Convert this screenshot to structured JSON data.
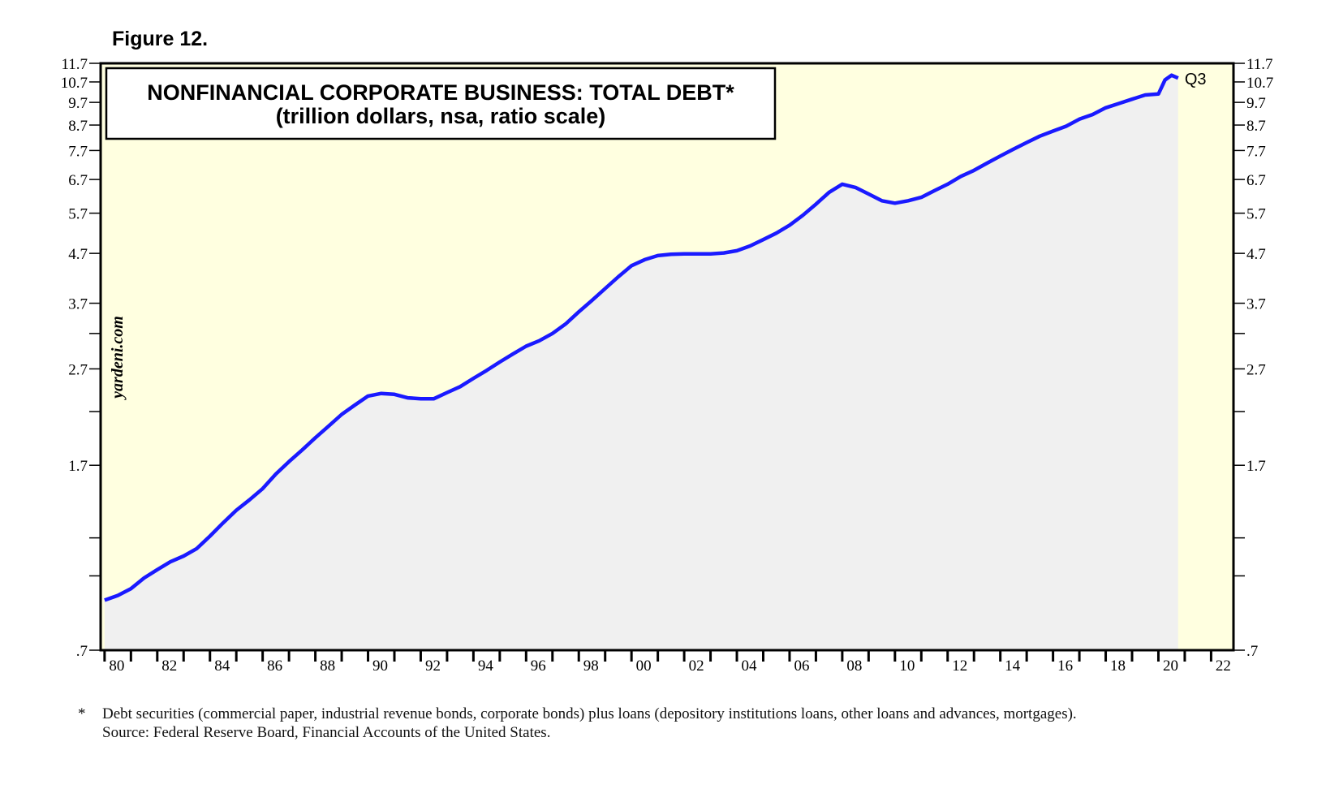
{
  "figure_label": "Figure 12.",
  "chart_data": {
    "type": "area",
    "title": "NONFINANCIAL CORPORATE BUSINESS: TOTAL DEBT*",
    "subtitle": "(trillion dollars, nsa, ratio scale)",
    "watermark": "yardeni.com",
    "y_scale": "log",
    "ylim": [
      0.7,
      11.7
    ],
    "y_tick_labels": [
      ".7",
      "1.7",
      "2.7",
      "3.7",
      "4.7",
      "5.7",
      "6.7",
      "7.7",
      "8.7",
      "9.7",
      "10.7",
      "11.7"
    ],
    "y_tick_values": [
      0.7,
      1.7,
      2.7,
      3.7,
      4.7,
      5.7,
      6.7,
      7.7,
      8.7,
      9.7,
      10.7,
      11.7
    ],
    "y_minor_ticks": [
      1.0,
      1.2,
      2.2,
      3.2
    ],
    "xlim": [
      1979.85,
      2022.85
    ],
    "x_tick_labels": [
      "80",
      "82",
      "84",
      "86",
      "88",
      "90",
      "92",
      "94",
      "96",
      "98",
      "00",
      "02",
      "04",
      "06",
      "08",
      "10",
      "12",
      "14",
      "16",
      "18",
      "20",
      "22"
    ],
    "x_tick_years": [
      1980,
      1982,
      1984,
      1986,
      1988,
      1990,
      1992,
      1994,
      1996,
      1998,
      2000,
      2002,
      2004,
      2006,
      2008,
      2010,
      2012,
      2014,
      2016,
      2018,
      2020,
      2022
    ],
    "last_point_label": "Q3",
    "series": [
      {
        "name": "Nonfinancial corporate business total debt",
        "color": "#1a1aff",
        "x": [
          1980.0,
          1980.5,
          1981.0,
          1981.5,
          1982.0,
          1982.5,
          1983.0,
          1983.5,
          1984.0,
          1984.5,
          1985.0,
          1985.5,
          1986.0,
          1986.5,
          1987.0,
          1987.5,
          1988.0,
          1988.5,
          1989.0,
          1989.5,
          1990.0,
          1990.5,
          1991.0,
          1991.5,
          1992.0,
          1992.5,
          1993.0,
          1993.5,
          1994.0,
          1994.5,
          1995.0,
          1995.5,
          1996.0,
          1996.5,
          1997.0,
          1997.5,
          1998.0,
          1998.5,
          1999.0,
          1999.5,
          2000.0,
          2000.5,
          2001.0,
          2001.5,
          2002.0,
          2002.5,
          2003.0,
          2003.5,
          2004.0,
          2004.5,
          2005.0,
          2005.5,
          2006.0,
          2006.5,
          2007.0,
          2007.5,
          2008.0,
          2008.5,
          2009.0,
          2009.5,
          2010.0,
          2010.5,
          2011.0,
          2011.5,
          2012.0,
          2012.5,
          2013.0,
          2013.5,
          2014.0,
          2014.5,
          2015.0,
          2015.5,
          2016.0,
          2016.5,
          2017.0,
          2017.5,
          2018.0,
          2018.5,
          2019.0,
          2019.5,
          2020.0,
          2020.25,
          2020.5,
          2020.75
        ],
        "values": [
          0.89,
          0.91,
          0.94,
          0.99,
          1.03,
          1.07,
          1.1,
          1.14,
          1.21,
          1.29,
          1.37,
          1.44,
          1.52,
          1.63,
          1.73,
          1.83,
          1.94,
          2.05,
          2.17,
          2.27,
          2.37,
          2.4,
          2.39,
          2.35,
          2.34,
          2.34,
          2.41,
          2.48,
          2.58,
          2.68,
          2.79,
          2.9,
          3.01,
          3.09,
          3.2,
          3.35,
          3.55,
          3.75,
          3.97,
          4.2,
          4.43,
          4.56,
          4.65,
          4.68,
          4.69,
          4.69,
          4.69,
          4.71,
          4.76,
          4.87,
          5.02,
          5.18,
          5.38,
          5.64,
          5.95,
          6.3,
          6.55,
          6.45,
          6.25,
          6.05,
          5.98,
          6.05,
          6.15,
          6.35,
          6.55,
          6.8,
          7.0,
          7.25,
          7.5,
          7.75,
          8.0,
          8.25,
          8.45,
          8.65,
          8.95,
          9.15,
          9.45,
          9.65,
          9.85,
          10.05,
          10.1,
          10.8,
          11.05,
          10.9
        ]
      }
    ]
  },
  "footnote": {
    "marker": "*",
    "text": "Debt securities (commercial paper, industrial revenue bonds, corporate bonds) plus loans (depository institutions loans, other loans and advances, mortgages).",
    "source": "Source: Federal Reserve Board, Financial Accounts of the United States."
  },
  "colors": {
    "plot_background": "#ffffe0",
    "area_fill": "#f0f0f0",
    "line": "#1a1aff",
    "frame": "#000000"
  }
}
